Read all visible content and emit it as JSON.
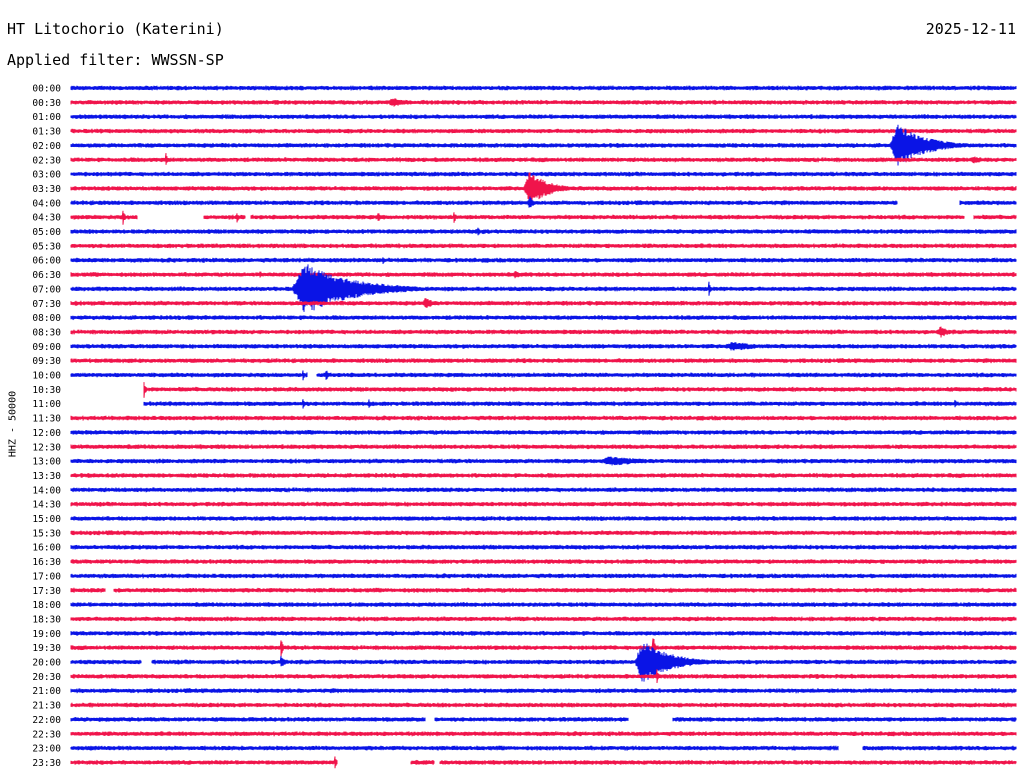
{
  "header": {
    "station": "HT Litochorio (Katerini)",
    "date": "2025-12-11",
    "filter_text": "Applied filter: WWSSN-SP"
  },
  "chart_data": {
    "type": "line",
    "title": "HT Litochorio (Katerini)",
    "ylabel": "HHZ - 50000",
    "colors": {
      "even_rows": "#0a14e6",
      "odd_rows": "#f0144b"
    },
    "rows": [
      {
        "label": "00:00",
        "events": [],
        "gaps": []
      },
      {
        "label": "00:30",
        "events": [
          {
            "x": 0.34,
            "amp": 5,
            "dur": 0.02
          }
        ],
        "gaps": []
      },
      {
        "label": "01:00",
        "events": [],
        "gaps": []
      },
      {
        "label": "01:30",
        "events": [],
        "gaps": []
      },
      {
        "label": "02:00",
        "events": [
          {
            "x": 0.875,
            "amp": 22,
            "dur": 0.03
          }
        ],
        "gaps": []
      },
      {
        "label": "02:30",
        "events": [
          {
            "x": 0.1,
            "amp": 10,
            "dur": 0.002
          },
          {
            "x": 0.955,
            "amp": 4,
            "dur": 0.015
          }
        ],
        "gaps": []
      },
      {
        "label": "03:00",
        "events": [],
        "gaps": []
      },
      {
        "label": "03:30",
        "events": [
          {
            "x": 0.485,
            "amp": 18,
            "dur": 0.02
          }
        ],
        "gaps": []
      },
      {
        "label": "04:00",
        "events": [
          {
            "x": 0.485,
            "amp": 8,
            "dur": 0.004
          }
        ],
        "gaps": [
          [
            0.875,
            0.94
          ]
        ]
      },
      {
        "label": "04:30",
        "events": [
          {
            "x": 0.055,
            "amp": 8,
            "dur": 0.002
          },
          {
            "x": 0.175,
            "amp": 8,
            "dur": 0.002
          },
          {
            "x": 0.325,
            "amp": 6,
            "dur": 0.002
          },
          {
            "x": 0.405,
            "amp": 8,
            "dur": 0.002
          }
        ],
        "gaps": [
          [
            0.07,
            0.14
          ],
          [
            0.185,
            0.19
          ],
          [
            0.945,
            0.955
          ]
        ]
      },
      {
        "label": "05:00",
        "events": [
          {
            "x": 0.43,
            "amp": 7,
            "dur": 0.002
          }
        ],
        "gaps": []
      },
      {
        "label": "05:30",
        "events": [],
        "gaps": []
      },
      {
        "label": "06:00",
        "events": [
          {
            "x": 0.33,
            "amp": 5,
            "dur": 0.002
          }
        ],
        "gaps": []
      },
      {
        "label": "06:30",
        "events": [
          {
            "x": 0.2,
            "amp": 5,
            "dur": 0.002
          },
          {
            "x": 0.47,
            "amp": 4,
            "dur": 0.01
          }
        ],
        "gaps": []
      },
      {
        "label": "07:00",
        "events": [
          {
            "x": 0.248,
            "amp": 26,
            "dur": 0.05
          },
          {
            "x": 0.675,
            "amp": 8,
            "dur": 0.002
          }
        ],
        "gaps": []
      },
      {
        "label": "07:30",
        "events": [
          {
            "x": 0.375,
            "amp": 6,
            "dur": 0.01
          }
        ],
        "gaps": []
      },
      {
        "label": "08:00",
        "events": [],
        "gaps": []
      },
      {
        "label": "08:30",
        "events": [
          {
            "x": 0.92,
            "amp": 6,
            "dur": 0.01
          }
        ],
        "gaps": []
      },
      {
        "label": "09:00",
        "events": [
          {
            "x": 0.7,
            "amp": 5,
            "dur": 0.03
          }
        ],
        "gaps": []
      },
      {
        "label": "09:30",
        "events": [],
        "gaps": []
      },
      {
        "label": "10:00",
        "events": [
          {
            "x": 0.245,
            "amp": 7,
            "dur": 0.002
          },
          {
            "x": 0.27,
            "amp": 7,
            "dur": 0.002
          }
        ],
        "gaps": [
          [
            0.25,
            0.26
          ]
        ]
      },
      {
        "label": "10:30",
        "events": [
          {
            "x": 0.077,
            "amp": 10,
            "dur": 0.002
          }
        ],
        "gaps": [
          [
            0.0,
            0.077
          ]
        ]
      },
      {
        "label": "11:00",
        "events": [
          {
            "x": 0.245,
            "amp": 8,
            "dur": 0.002
          },
          {
            "x": 0.315,
            "amp": 6,
            "dur": 0.002
          },
          {
            "x": 0.935,
            "amp": 6,
            "dur": 0.002
          }
        ],
        "gaps": [
          [
            0.0,
            0.077
          ]
        ]
      },
      {
        "label": "11:30",
        "events": [],
        "gaps": []
      },
      {
        "label": "12:00",
        "events": [],
        "gaps": []
      },
      {
        "label": "12:30",
        "events": [],
        "gaps": []
      },
      {
        "label": "13:00",
        "events": [
          {
            "x": 0.57,
            "amp": 5,
            "dur": 0.045
          }
        ],
        "gaps": []
      },
      {
        "label": "13:30",
        "events": [],
        "gaps": []
      },
      {
        "label": "14:00",
        "events": [],
        "gaps": []
      },
      {
        "label": "14:30",
        "events": [],
        "gaps": []
      },
      {
        "label": "15:00",
        "events": [],
        "gaps": []
      },
      {
        "label": "15:30",
        "events": [],
        "gaps": []
      },
      {
        "label": "16:00",
        "events": [],
        "gaps": []
      },
      {
        "label": "16:30",
        "events": [],
        "gaps": []
      },
      {
        "label": "17:00",
        "events": [],
        "gaps": []
      },
      {
        "label": "17:30",
        "events": [],
        "gaps": [
          [
            0.037,
            0.045
          ]
        ]
      },
      {
        "label": "18:00",
        "events": [],
        "gaps": []
      },
      {
        "label": "18:30",
        "events": [],
        "gaps": []
      },
      {
        "label": "19:00",
        "events": [],
        "gaps": []
      },
      {
        "label": "19:30",
        "events": [
          {
            "x": 0.222,
            "amp": 12,
            "dur": 0.002
          },
          {
            "x": 0.616,
            "amp": 14,
            "dur": 0.002
          }
        ],
        "gaps": []
      },
      {
        "label": "20:00",
        "events": [
          {
            "x": 0.222,
            "amp": 8,
            "dur": 0.004
          },
          {
            "x": 0.605,
            "amp": 22,
            "dur": 0.03
          }
        ],
        "gaps": [
          [
            0.075,
            0.085
          ]
        ]
      },
      {
        "label": "20:30",
        "events": [
          {
            "x": 0.62,
            "amp": 8,
            "dur": 0.002
          }
        ],
        "gaps": []
      },
      {
        "label": "21:00",
        "events": [],
        "gaps": []
      },
      {
        "label": "21:30",
        "events": [],
        "gaps": []
      },
      {
        "label": "22:00",
        "events": [],
        "gaps": [
          [
            0.375,
            0.385
          ],
          [
            0.59,
            0.637
          ]
        ]
      },
      {
        "label": "22:30",
        "events": [],
        "gaps": []
      },
      {
        "label": "23:00",
        "events": [],
        "gaps": [
          [
            0.812,
            0.838
          ]
        ]
      },
      {
        "label": "23:30",
        "events": [
          {
            "x": 0.279,
            "amp": 8,
            "dur": 0.002
          }
        ],
        "gaps": [
          [
            0.282,
            0.359
          ],
          [
            0.385,
            0.39
          ]
        ]
      }
    ]
  }
}
